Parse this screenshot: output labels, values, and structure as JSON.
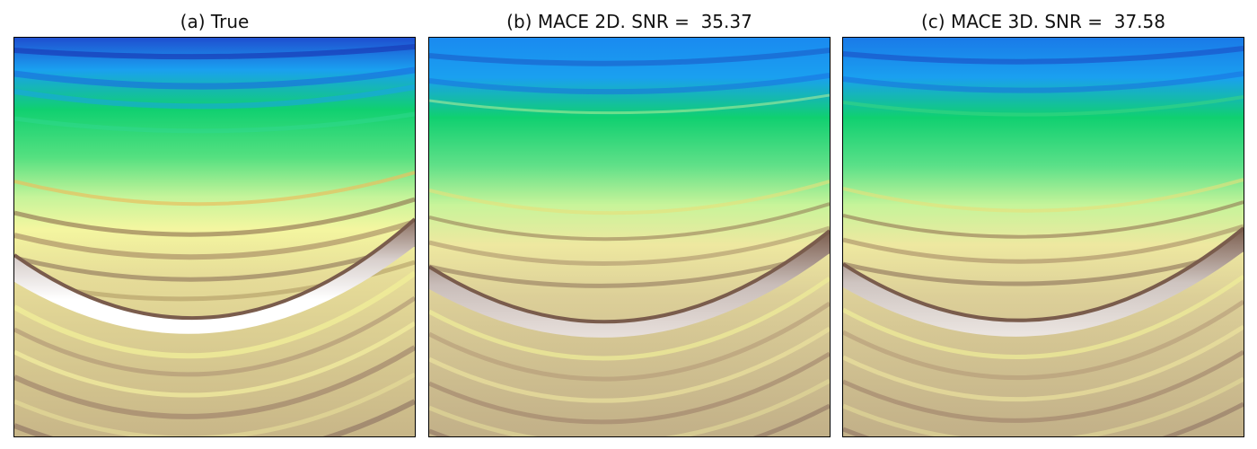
{
  "panels": [
    {
      "title": "(a) True"
    },
    {
      "title": "(b) MACE 2D. SNR =  35.37"
    },
    {
      "title": "(c) MACE 3D. SNR =  37.58"
    }
  ],
  "colormap": {
    "deep_blue": "#1f4fd0",
    "sky_blue": "#1aa0f0",
    "green": "#10d070",
    "light_green": "#9cf09a",
    "pale_yellow": "#f4f6a0",
    "sand": "#d6c890",
    "brown": "#7a5c4c",
    "white": "#ffffff"
  }
}
